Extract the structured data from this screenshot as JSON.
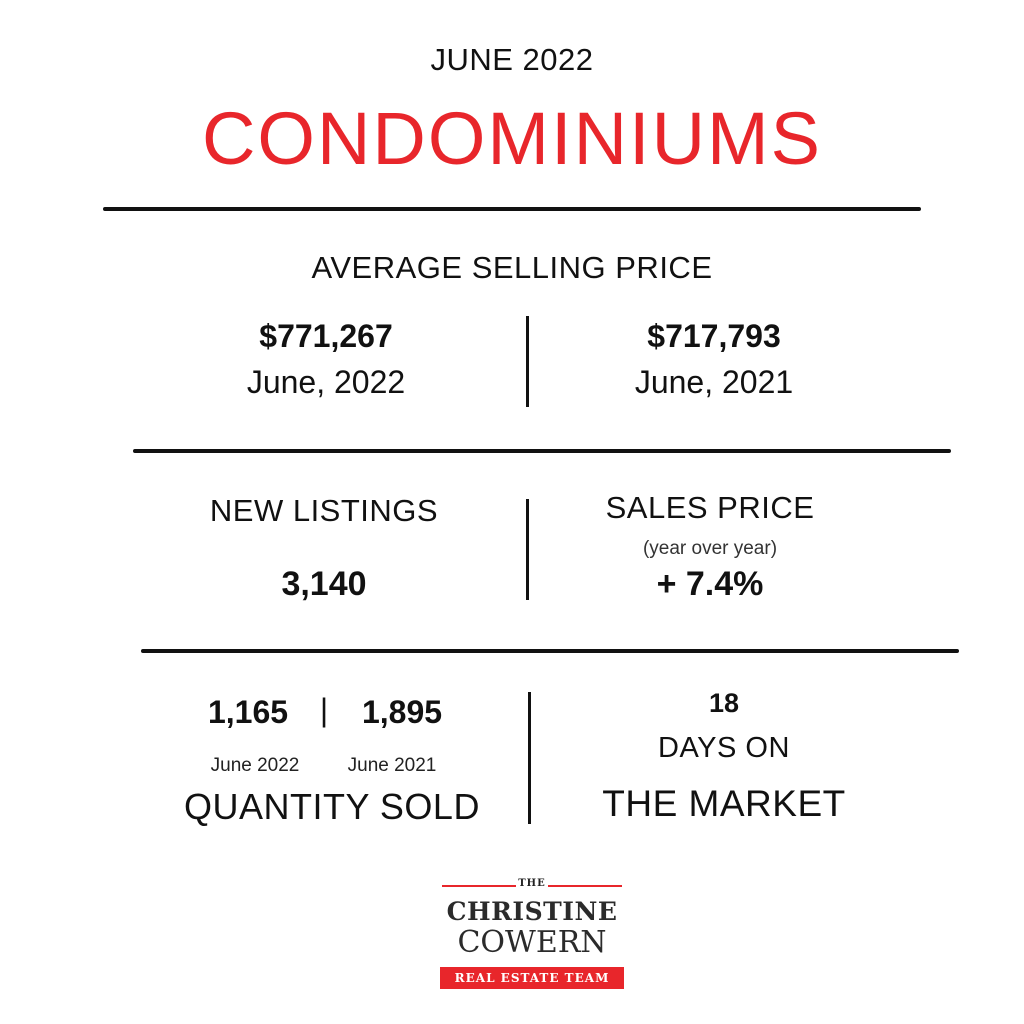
{
  "header": {
    "month": "JUNE 2022",
    "title": "CONDOMINIUMS"
  },
  "average_selling_price": {
    "label": "AVERAGE SELLING PRICE",
    "current_value": "$771,267",
    "current_date": "June, 2022",
    "previous_value": "$717,793",
    "previous_date": "June, 2021"
  },
  "new_listings": {
    "label": "NEW LISTINGS",
    "value": "3,140"
  },
  "sales_price": {
    "label": "SALES PRICE",
    "sublabel": "(year over year)",
    "value": "+ 7.4%"
  },
  "quantity_sold": {
    "current_value": "1,165",
    "separator": "|",
    "previous_value": "1,895",
    "current_date": "June 2022",
    "previous_date": "June 2021",
    "label": "QUANTITY SOLD"
  },
  "days_on_market": {
    "value": "18",
    "label_line1": "DAYS ON",
    "label_line2": "THE MARKET"
  },
  "logo": {
    "the": "THE",
    "line1": "CHRISTINE",
    "line2": "COWERN",
    "banner": "REAL ESTATE TEAM"
  },
  "colors": {
    "accent": "#e8262b",
    "text": "#111111",
    "background": "#ffffff"
  }
}
